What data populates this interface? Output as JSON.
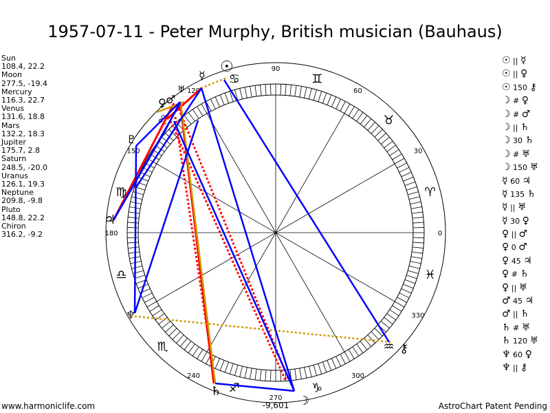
{
  "title": "1957-07-11 - Peter Murphy, British musician (Bauhaus)",
  "planets": [
    {
      "name": "Sun",
      "coords": "108.4, 22.2"
    },
    {
      "name": "Moon",
      "coords": "277.5, -19.4"
    },
    {
      "name": "Mercury",
      "coords": "116.3, 22.7"
    },
    {
      "name": "Venus",
      "coords": "131.6, 18.8"
    },
    {
      "name": "Mars",
      "coords": "132.2, 18.3"
    },
    {
      "name": "Jupiter",
      "coords": "175.7, 2.8"
    },
    {
      "name": "Saturn",
      "coords": "248.5, -20.0"
    },
    {
      "name": "Uranus",
      "coords": "126.1, 19.3"
    },
    {
      "name": "Neptune",
      "coords": "209.8, -9.8"
    },
    {
      "name": "Pluto",
      "coords": "148.8, 22.2"
    },
    {
      "name": "Chiron",
      "coords": "316.2, -9.2"
    }
  ],
  "aspects": [
    {
      "p1": "☉",
      "sym": "||",
      "p2": "☿"
    },
    {
      "p1": "☉",
      "sym": "||",
      "p2": "♀"
    },
    {
      "p1": "☉",
      "sym": "150",
      "p2": "⚷"
    },
    {
      "p1": "☽",
      "sym": "#",
      "p2": "♀"
    },
    {
      "p1": "☽",
      "sym": "#",
      "p2": "♂"
    },
    {
      "p1": "☽",
      "sym": "||",
      "p2": "♄"
    },
    {
      "p1": "☽",
      "sym": "30",
      "p2": "♄"
    },
    {
      "p1": "☽",
      "sym": "#",
      "p2": "♅"
    },
    {
      "p1": "☽",
      "sym": "150",
      "p2": "♅"
    },
    {
      "p1": "☿",
      "sym": "60",
      "p2": "♃"
    },
    {
      "p1": "☿",
      "sym": "135",
      "p2": "♄"
    },
    {
      "p1": "☿",
      "sym": "||",
      "p2": "♅"
    },
    {
      "p1": "☿",
      "sym": "30",
      "p2": "♀"
    },
    {
      "p1": "♀",
      "sym": "||",
      "p2": "♂"
    },
    {
      "p1": "♀",
      "sym": "0",
      "p2": "♂"
    },
    {
      "p1": "♀",
      "sym": "45",
      "p2": "♃"
    },
    {
      "p1": "♀",
      "sym": "#",
      "p2": "♄"
    },
    {
      "p1": "♀",
      "sym": "||",
      "p2": "♅"
    },
    {
      "p1": "♂",
      "sym": "45",
      "p2": "♃"
    },
    {
      "p1": "♂",
      "sym": "||",
      "p2": "♄"
    },
    {
      "p1": "♄",
      "sym": "#",
      "p2": "♅"
    },
    {
      "p1": "♄",
      "sym": "120",
      "p2": "♅"
    },
    {
      "p1": "♆",
      "sym": "60",
      "p2": "♀"
    },
    {
      "p1": "♆",
      "sym": "||",
      "p2": "⚷"
    }
  ],
  "wheel": {
    "degree_labels": [
      "0",
      "30",
      "60",
      "90",
      "120",
      "150",
      "180",
      "240",
      "270",
      "300",
      "330"
    ],
    "zodiac_signs": [
      "♈",
      "♉",
      "♊",
      "♋",
      "♌",
      "♍",
      "♎",
      "♏",
      "♐",
      "♑",
      "♒",
      "♓"
    ],
    "bottom_value": "-9,601",
    "planet_glyphs": {
      "sun": "☉",
      "moon": "☽",
      "mercury": "☿",
      "venus": "♀",
      "mars": "♂",
      "jupiter": "♃",
      "saturn": "♄",
      "uranus": "♅",
      "neptune": "♆",
      "pluto": "♇",
      "chiron": "⚷"
    }
  },
  "colors": {
    "opposition": "#ff0000",
    "square": "#ff0000",
    "trine": "#0000ff",
    "sextile": "#0000ff",
    "parallel": "#cc9900",
    "ring": "#000000"
  },
  "footer": {
    "left": "www.harmoniclife.com",
    "right": "AstroChart Patent Pending"
  }
}
